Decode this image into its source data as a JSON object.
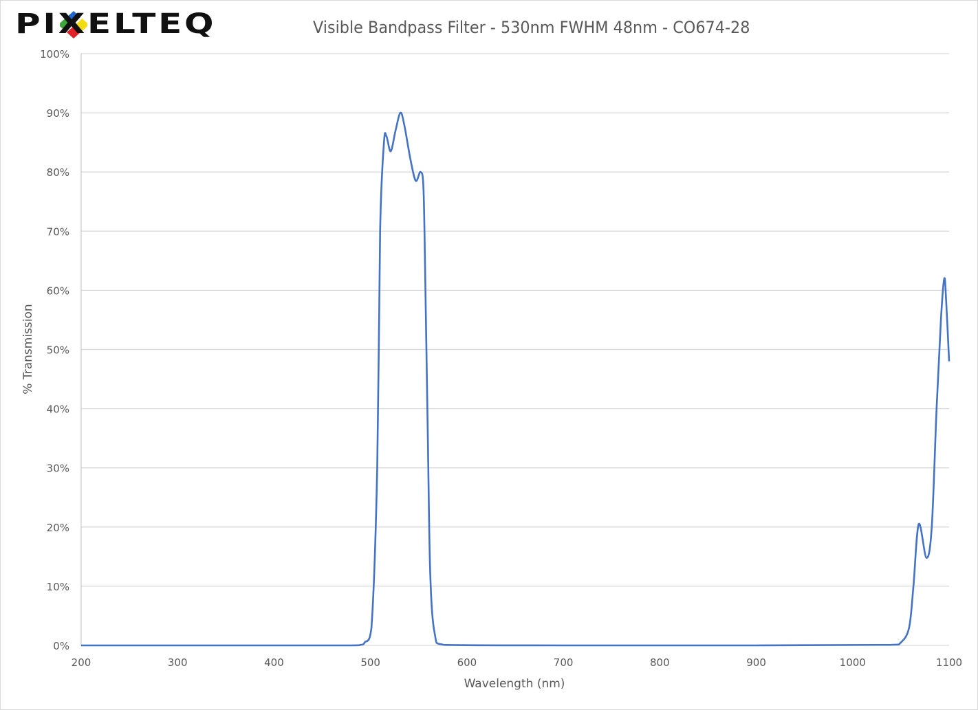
{
  "logo_text": "PIXELTEQ",
  "chart_data": {
    "type": "line",
    "title": "Visible Bandpass Filter - 530nm FWHM 48nm - CO674-28",
    "xlabel": "Wavelength (nm)",
    "ylabel": "% Transmission",
    "xlim": [
      200,
      1100
    ],
    "ylim": [
      0,
      100
    ],
    "x_ticks": [
      200,
      300,
      400,
      500,
      600,
      700,
      800,
      900,
      1000,
      1100
    ],
    "y_ticks": [
      0,
      10,
      20,
      30,
      40,
      50,
      60,
      70,
      80,
      90,
      100
    ],
    "y_tick_labels": [
      "0%",
      "10%",
      "20%",
      "30%",
      "40%",
      "50%",
      "60%",
      "70%",
      "80%",
      "90%",
      "100%"
    ],
    "grid": "horizontal",
    "line_color": "#4472c4",
    "series": [
      {
        "x": [
          200,
          300,
          400,
          480,
          490,
          494,
          501,
          507,
          510,
          514,
          516.6,
          521,
          526,
          531,
          535,
          541.6,
          547,
          552,
          555,
          557,
          559.5,
          562,
          566.6,
          576,
          700,
          900,
          1040,
          1050,
          1058.5,
          1063,
          1068.5,
          1076.5,
          1082,
          1087,
          1091.5,
          1095,
          1097,
          1100
        ],
        "y": [
          0,
          0,
          0,
          0,
          0.1,
          0.5,
          3,
          30,
          70,
          85,
          86,
          83.5,
          87,
          90,
          88,
          82,
          78.5,
          80,
          77,
          60,
          35,
          12,
          2,
          0.1,
          0,
          0,
          0.1,
          0.5,
          3,
          10,
          20.5,
          14.8,
          20,
          40,
          55,
          62,
          58,
          48
        ]
      }
    ]
  }
}
